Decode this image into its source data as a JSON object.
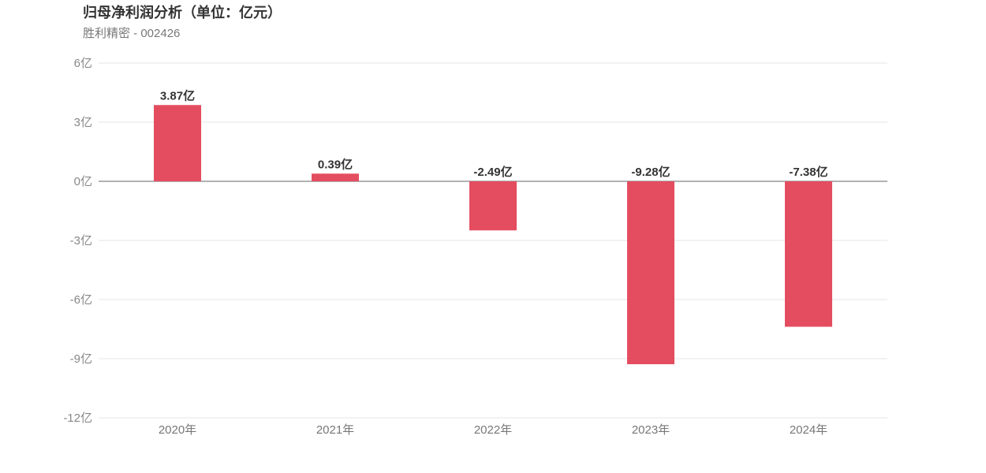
{
  "title": "归母净利润分析（单位：亿元）",
  "subtitle": "胜利精密 - 002426",
  "chart_data": {
    "type": "bar",
    "categories": [
      "2020年",
      "2021年",
      "2022年",
      "2023年",
      "2024年"
    ],
    "series": [
      {
        "values": [
          3.87,
          0.39,
          -2.49,
          -9.28,
          -7.38
        ]
      }
    ],
    "data_labels": [
      "3.87亿",
      "0.39亿",
      "-2.49亿",
      "-9.28亿",
      "-7.38亿"
    ],
    "y_ticks": [
      6,
      3,
      0,
      -3,
      -6,
      -9,
      -12
    ],
    "y_tick_labels": [
      "6亿",
      "3亿",
      "0亿",
      "-3亿",
      "-6亿",
      "-9亿",
      "-12亿"
    ],
    "ylim": [
      -12,
      6
    ],
    "grid": true,
    "bar_color": "#e44d5f"
  }
}
